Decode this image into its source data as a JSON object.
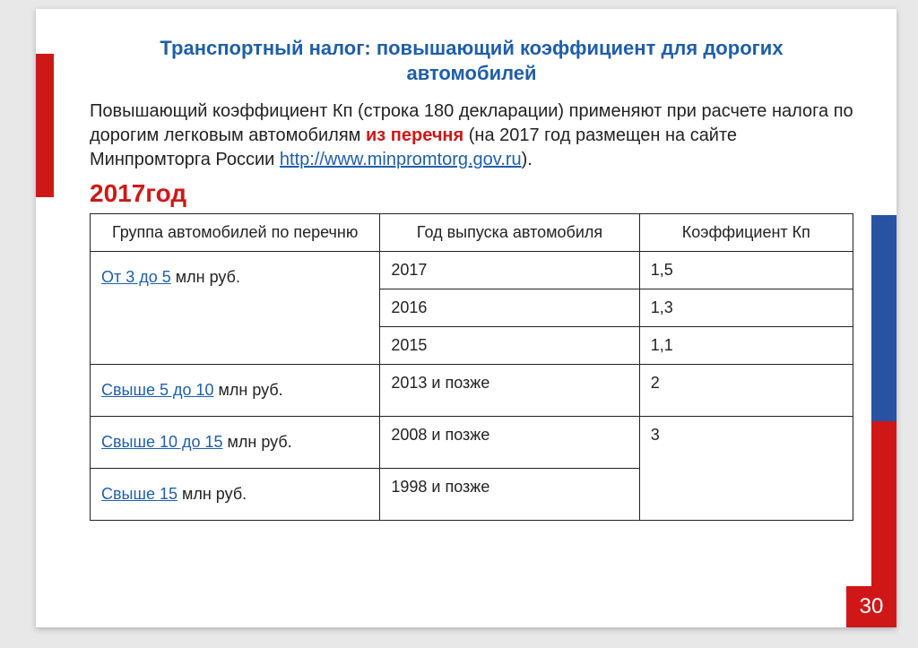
{
  "colors": {
    "title": "#1f5ea8",
    "accent_red": "#d01718",
    "link": "#1f5ea8",
    "text": "#222222",
    "border": "#222222",
    "background": "#ffffff",
    "page_bg": "#e8e8e8",
    "flag_white": "#ffffff",
    "flag_blue": "#2853a3",
    "flag_red": "#d01718"
  },
  "title": "Транспортный налог: повышающий коэффициент для дорогих автомобилей",
  "intro": {
    "part1": "Повышающий коэффициент Кп (строка 180 декларации) применяют при расчете налога по дорогим легковым автомобилям ",
    "highlight": "из перечня",
    "part2": " (на 2017 год размещен на сайте Минпромторга России ",
    "link_text": "http://www.minpromtorg.gov.ru",
    "link_suffix": ")."
  },
  "year_label": "2017год",
  "table": {
    "headers": [
      "Группа автомобилей по перечню",
      "Год выпуска автомобиля",
      "Коэффициент Кп"
    ],
    "rows": [
      {
        "group_link": "От 3 до 5",
        "group_suffix": " млн руб.",
        "year": "2017",
        "kp": "1,5",
        "rowspan": 3
      },
      {
        "year": "2016",
        "kp": "1,3"
      },
      {
        "year": "2015",
        "kp": "1,1"
      },
      {
        "group_link": "Свыше 5 до 10",
        "group_suffix": " млн руб.",
        "year": "2013 и позже",
        "kp": "2",
        "rowspan": 1
      },
      {
        "group_link": "Свыше 10 до 15",
        "group_suffix": " млн руб.",
        "year": "2008 и позже",
        "kp": "3",
        "rowspan": 2
      },
      {
        "group_link": "Свыше 15",
        "group_suffix": " млн руб.",
        "year": "1998 и позже"
      }
    ]
  },
  "page_number": "30"
}
